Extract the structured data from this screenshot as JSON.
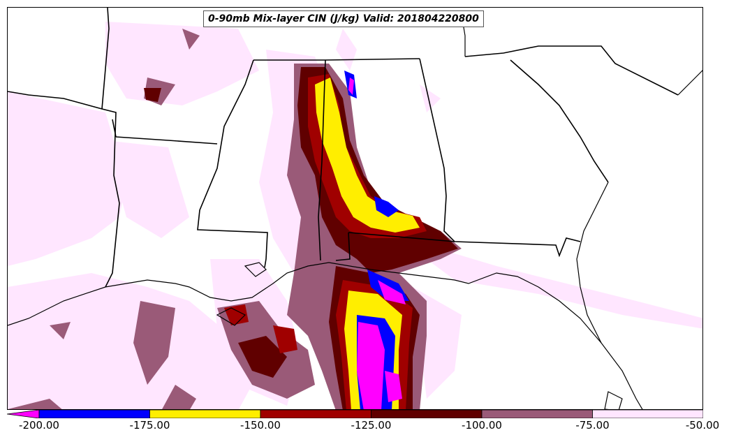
{
  "title": "0-90mb Mix-layer CIN (J/kg) Valid: 201804220800",
  "colorbar": {
    "tick_labels": [
      "-200.00",
      "-175.00",
      "-150.00",
      "-125.00",
      "-100.00",
      "-75.00",
      "-50.00"
    ],
    "levels": [
      -200,
      -175,
      -150,
      -125,
      -100,
      -75,
      -50
    ],
    "colors": [
      "#ff00ff",
      "#0000ff",
      "#ffee00",
      "#a00000",
      "#600000",
      "#9a5a78",
      "#ffe6ff"
    ],
    "extend": "min"
  },
  "colors": {
    "land_background": "#ffffff",
    "boundaries": "#000000",
    "cin_-50_-75": "#ffe6ff",
    "cin_-75_-100": "#9a5a78",
    "cin_-100_-125": "#600000",
    "cin_-125_-150": "#a00000",
    "cin_-150_-175": "#ffee00",
    "cin_-175_-200": "#0000ff",
    "cin_below_-200": "#ff00ff"
  }
}
